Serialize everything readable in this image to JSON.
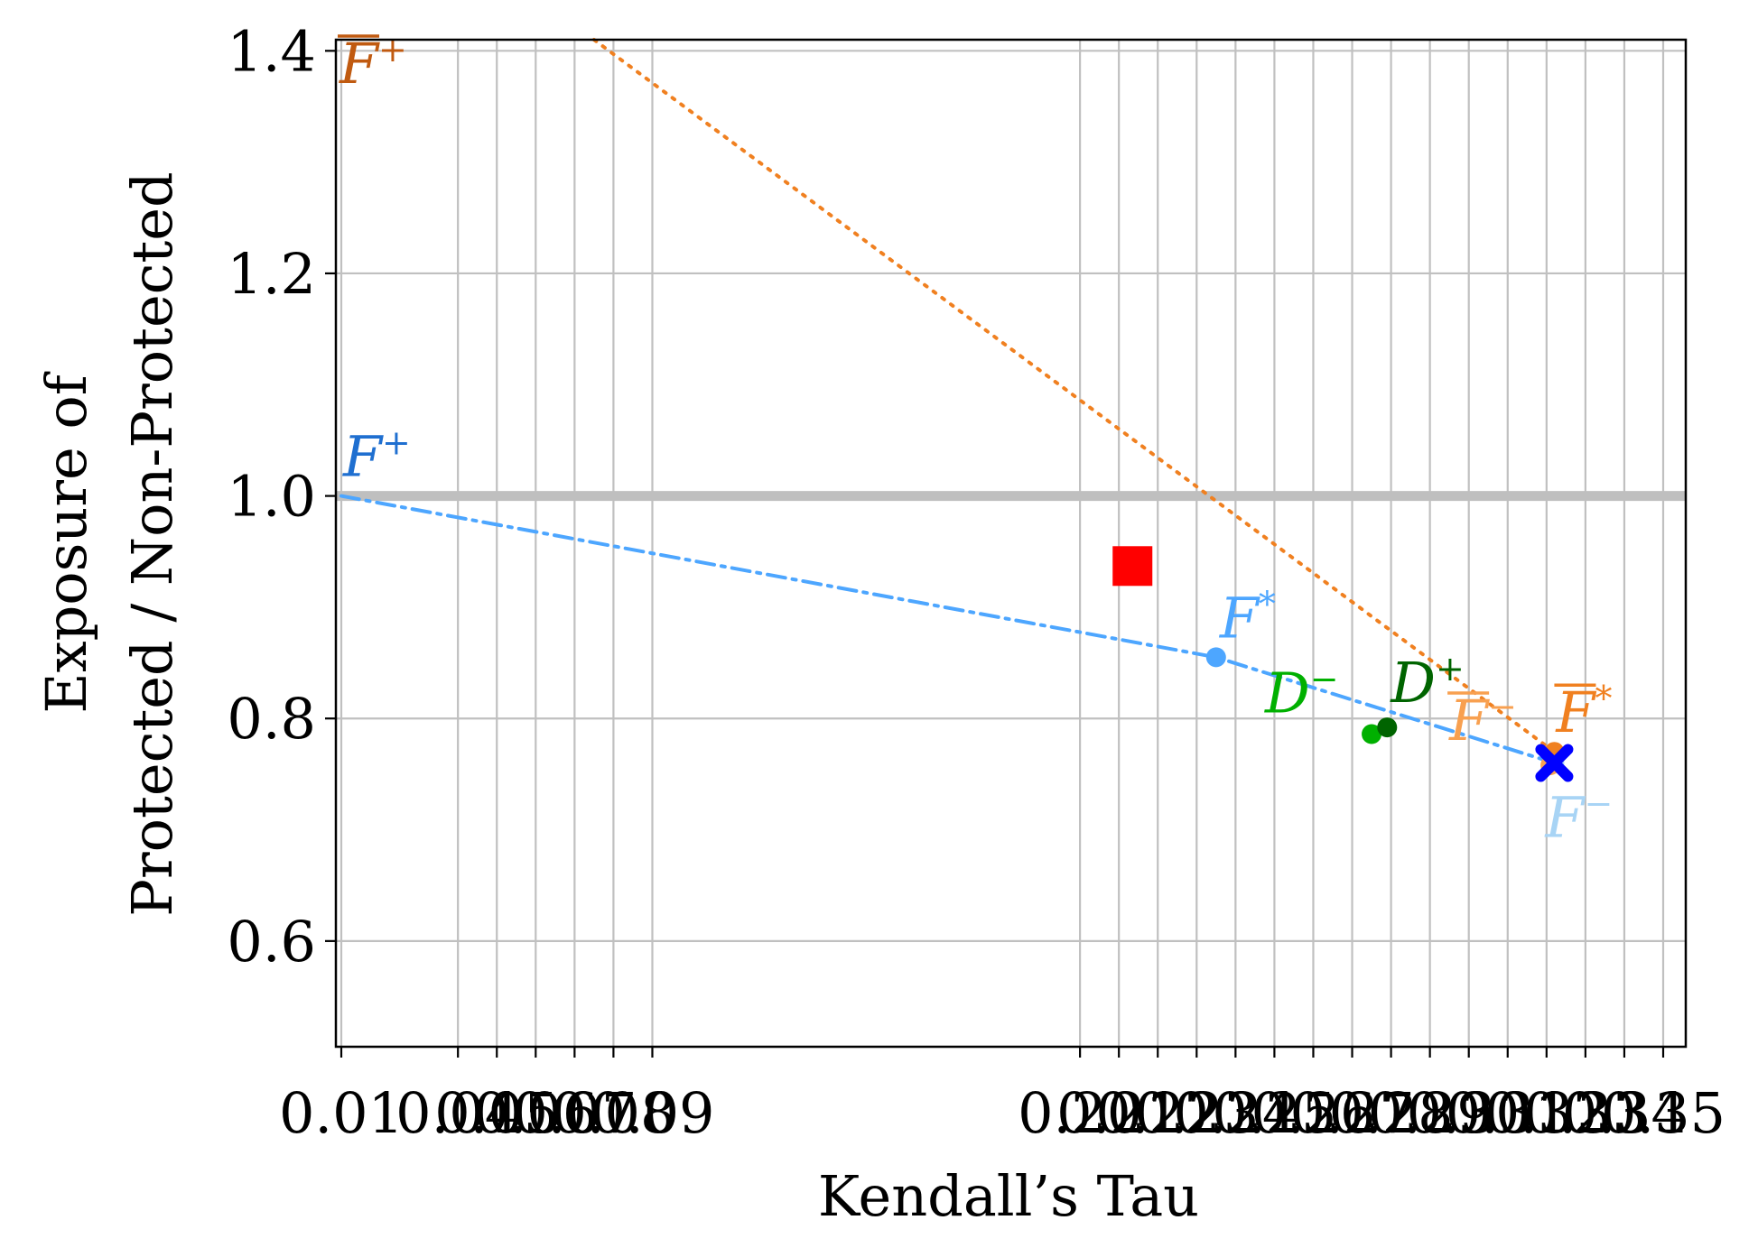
{
  "chart_data": {
    "type": "scatter",
    "xlabel": "Kendall’s Tau",
    "ylabel_lines": [
      "Exposure of",
      "Protected / Non-Protected"
    ],
    "x_ticks": [
      0.01,
      0.04,
      0.05,
      0.06,
      0.07,
      0.08,
      0.09,
      0.2,
      0.21,
      0.22,
      0.23,
      0.24,
      0.25,
      0.26,
      0.27,
      0.28,
      0.29,
      0.3,
      0.31,
      0.32,
      0.33,
      0.34,
      0.35
    ],
    "x_tick_labels": [
      "0.01",
      "0.04",
      "0.05",
      "0.06",
      "0.07",
      "0.08",
      "0.09",
      "0.20",
      "0.21",
      "0.22",
      "0.23",
      "0.24",
      "0.25",
      "0.26",
      "0.27",
      "0.28",
      "0.29",
      "0.30",
      "0.31",
      "0.32",
      "0.33",
      "0.34",
      "0.35"
    ],
    "y_ticks": [
      0.6,
      0.8,
      1.0,
      1.2,
      1.4
    ],
    "y_tick_labels": [
      "0.6",
      "0.8",
      "1.0",
      "1.2",
      "1.4"
    ],
    "ylim": [
      0.505,
      1.41
    ],
    "grid": true,
    "reference_line": {
      "y": 1.0,
      "color": "#bfbfbf"
    },
    "series": [
      {
        "style": "dashdot",
        "color": "#4da6ff",
        "x": [
          0.01,
          0.235,
          0.322
        ],
        "y": [
          1.0,
          0.855,
          0.76
        ]
      },
      {
        "style": "dotted",
        "color": "#f08020",
        "x": [
          0.075,
          0.322
        ],
        "y": [
          1.41,
          0.77
        ]
      }
    ],
    "points": [
      {
        "label_base": "F",
        "label_sup": "+",
        "overline": false,
        "x": 0.01,
        "y": 1.0,
        "color": "#1f6fd0",
        "marker": "none"
      },
      {
        "label_base": "F",
        "label_sup": "*",
        "overline": false,
        "x": 0.235,
        "y": 0.855,
        "color": "#4da6ff",
        "marker": "circle"
      },
      {
        "label_base": "F",
        "label_sup": "−",
        "overline": false,
        "x": 0.322,
        "y": 0.76,
        "color": "#a8d4f5",
        "marker": "circle"
      },
      {
        "label_base": "F",
        "label_sup": "+",
        "overline": true,
        "x": 0.01,
        "y": 1.41,
        "color": "#c05a10",
        "marker": "none"
      },
      {
        "label_base": "F",
        "label_sup": "*",
        "overline": true,
        "x": 0.322,
        "y": 0.77,
        "color": "#f08020",
        "marker": "circle"
      },
      {
        "label_base": "F",
        "label_sup": "−",
        "overline": true,
        "x": 0.321,
        "y": 0.758,
        "color": "#f8a050",
        "marker": "circle"
      },
      {
        "label_base": "D",
        "label_sup": "−",
        "overline": false,
        "x": 0.275,
        "y": 0.786,
        "color": "#00b000",
        "marker": "circle"
      },
      {
        "label_base": "D",
        "label_sup": "+",
        "overline": false,
        "x": 0.279,
        "y": 0.792,
        "color": "#006400",
        "marker": "circle"
      },
      {
        "label_base": "",
        "label_sup": "",
        "overline": false,
        "x": 0.322,
        "y": 0.76,
        "color": "#0000ff",
        "marker": "x"
      },
      {
        "label_base": "",
        "label_sup": "",
        "overline": false,
        "x": 0.2135,
        "y": 0.937,
        "color": "#ff0000",
        "marker": "square"
      }
    ]
  }
}
